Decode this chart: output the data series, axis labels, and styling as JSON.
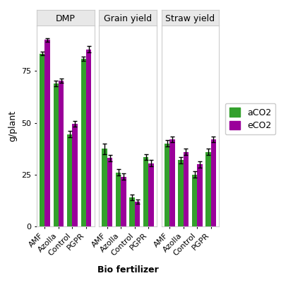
{
  "panels": [
    "DMP",
    "Grain yield",
    "Straw yield"
  ],
  "categories": [
    "AMF",
    "Azolla",
    "Control",
    "PGPR"
  ],
  "aCO2_color": "#33a02c",
  "eCO2_color": "#9a009a",
  "bar_width": 0.38,
  "values": {
    "DMP": {
      "aCO2": [
        83.5,
        69.0,
        44.5,
        81.0
      ],
      "eCO2": [
        90.0,
        70.5,
        49.5,
        85.5
      ],
      "aCO2_err": [
        1.0,
        1.5,
        1.5,
        1.0
      ],
      "eCO2_err": [
        1.0,
        1.0,
        1.5,
        1.5
      ]
    },
    "Grain yield": {
      "aCO2": [
        37.5,
        26.0,
        14.0,
        33.5
      ],
      "eCO2": [
        33.0,
        24.0,
        12.0,
        30.5
      ],
      "aCO2_err": [
        2.5,
        1.5,
        1.5,
        1.5
      ],
      "eCO2_err": [
        1.5,
        1.5,
        1.0,
        1.5
      ]
    },
    "Straw yield": {
      "aCO2": [
        40.0,
        32.0,
        25.0,
        36.0
      ],
      "eCO2": [
        42.0,
        36.0,
        30.0,
        42.0
      ],
      "aCO2_err": [
        1.5,
        1.5,
        1.5,
        1.5
      ],
      "eCO2_err": [
        1.5,
        1.5,
        1.5,
        1.5
      ]
    }
  },
  "ylabel": "g/plant",
  "xlabel": "Bio fertilizer",
  "ylim": [
    0,
    97
  ],
  "yticks": [
    0,
    25,
    50,
    75
  ],
  "plot_bg": "#ffffff",
  "fig_bg": "#ffffff",
  "strip_bg": "#e8e8e8",
  "grid_color": "#ffffff",
  "spine_color": "#cccccc",
  "title_fontsize": 9,
  "label_fontsize": 9,
  "tick_fontsize": 8,
  "legend_fontsize": 9
}
